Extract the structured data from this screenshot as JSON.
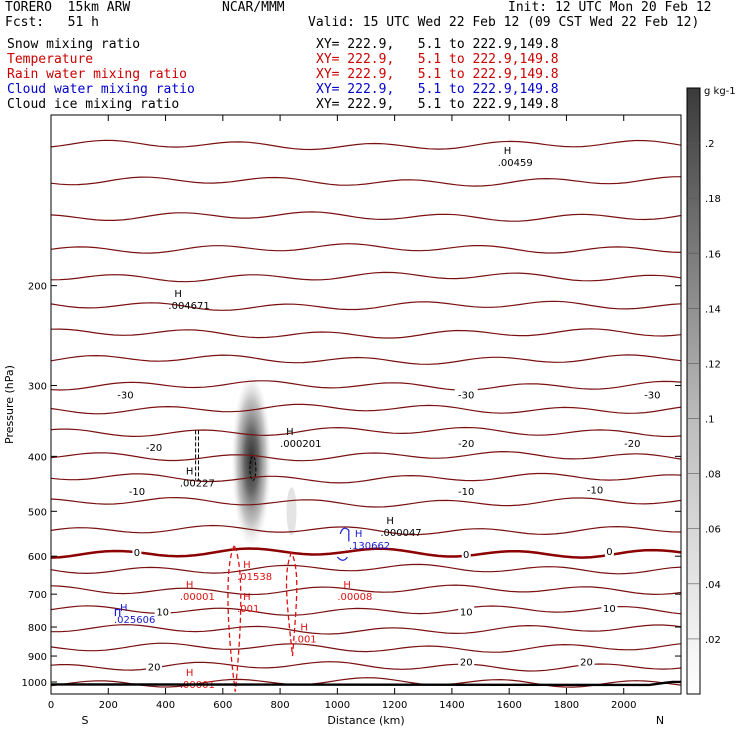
{
  "header": {
    "model": "TORERO  15km ARW",
    "forecast": "Fcst:   51 h",
    "center": "NCAR/MMM",
    "init": "Init: 12 UTC Mon 20 Feb 12",
    "valid": "Valid: 15 UTC Wed 22 Feb 12 (09 CST Wed 22 Feb 12)"
  },
  "fields": [
    {
      "name": "Snow mixing ratio",
      "xy": "XY= 222.9,   5.1 to 222.9,149.8",
      "color": "#000000"
    },
    {
      "name": "Temperature",
      "xy": "XY= 222.9,   5.1 to 222.9,149.8",
      "color": "#cc0000"
    },
    {
      "name": "Rain water mixing ratio",
      "xy": "XY= 222.9,   5.1 to 222.9,149.8",
      "color": "#cc0000"
    },
    {
      "name": "Cloud water mixing ratio",
      "xy": "XY= 222.9,   5.1 to 222.9,149.8",
      "color": "#0000cc"
    },
    {
      "name": "Cloud ice mixing ratio",
      "xy": "XY= 222.9,   5.1 to 222.9,149.8",
      "color": "#000000"
    }
  ],
  "colors": {
    "temperature": "#7a1010",
    "freezing": "#8b0000",
    "rain": "#dd1111",
    "cloud_water": "#1a1ad0",
    "axis": "#000000"
  },
  "chart_data": {
    "type": "cross-section",
    "xlabel": "Distance (km)",
    "ylabel": "Pressure (hPa)",
    "xlim": [
      0,
      2200
    ],
    "ylim": [
      1050,
      100
    ],
    "x_ticks": [
      0,
      200,
      400,
      600,
      800,
      1000,
      1200,
      1400,
      1600,
      1800,
      2000
    ],
    "y_ticks": [
      200,
      300,
      400,
      500,
      600,
      700,
      800,
      900,
      1000
    ],
    "x_end_labels": {
      "left": "S",
      "right": "N"
    },
    "temperature_isotherm_levels_hPa": [
      1002,
      938,
      870,
      808,
      748,
      688,
      632,
      592,
      540,
      482,
      437,
      400,
      362,
      330,
      300,
      270,
      243,
      217,
      193,
      172,
      151,
      131,
      113
    ],
    "temperature_labels": [
      {
        "text": "-30",
        "x": 260,
        "p": 311
      },
      {
        "text": "-30",
        "x": 1450,
        "p": 311
      },
      {
        "text": "-30",
        "x": 2100,
        "p": 311
      },
      {
        "text": "-20",
        "x": 360,
        "p": 385
      },
      {
        "text": "-20",
        "x": 1450,
        "p": 379
      },
      {
        "text": "-20",
        "x": 2030,
        "p": 379
      },
      {
        "text": "-10",
        "x": 300,
        "p": 460
      },
      {
        "text": "-10",
        "x": 1450,
        "p": 460
      },
      {
        "text": "-10",
        "x": 1900,
        "p": 458
      },
      {
        "text": "0",
        "x": 300,
        "p": 590
      },
      {
        "text": "0",
        "x": 1450,
        "p": 595
      },
      {
        "text": "0",
        "x": 1950,
        "p": 587
      },
      {
        "text": "10",
        "x": 390,
        "p": 751
      },
      {
        "text": "10",
        "x": 1450,
        "p": 751
      },
      {
        "text": "10",
        "x": 1950,
        "p": 740
      },
      {
        "text": "20",
        "x": 360,
        "p": 939
      },
      {
        "text": "20",
        "x": 1450,
        "p": 920
      },
      {
        "text": "20",
        "x": 1870,
        "p": 920
      }
    ],
    "snow_maxima": [
      {
        "text": ".004671",
        "x": 410,
        "p": 220
      },
      {
        "text": ".000201",
        "x": 800,
        "p": 385
      },
      {
        "text": ".00227",
        "x": 450,
        "p": 452
      },
      {
        "text": ".000047",
        "x": 1150,
        "p": 553
      },
      {
        "text": ".00459",
        "x": 1560,
        "p": 123
      }
    ],
    "rain_maxima": [
      {
        "text": ".01538",
        "x": 650,
        "p": 661
      },
      {
        "text": ".00001",
        "x": 450,
        "p": 717
      },
      {
        "text": ".00008",
        "x": 1000,
        "p": 717
      },
      {
        "text": ".001",
        "x": 650,
        "p": 753
      },
      {
        "text": ".001",
        "x": 850,
        "p": 851
      },
      {
        "text": ".00001",
        "x": 450,
        "p": 1025
      }
    ],
    "cloud_water_maxima": [
      {
        "text": ".130662",
        "x": 1040,
        "p": 583
      },
      {
        "text": ".025606",
        "x": 220,
        "p": 787
      }
    ],
    "cloud_ice_core": {
      "x": 700,
      "p_top": 290,
      "p_bottom": 590,
      "p_peak": 430
    },
    "colorbar": {
      "unit": "g kg-1",
      "ticks": [
        ".02",
        ".04",
        ".06",
        ".08",
        ".1",
        ".12",
        ".14",
        ".16",
        ".18",
        ".2"
      ],
      "max": 0.22
    }
  }
}
